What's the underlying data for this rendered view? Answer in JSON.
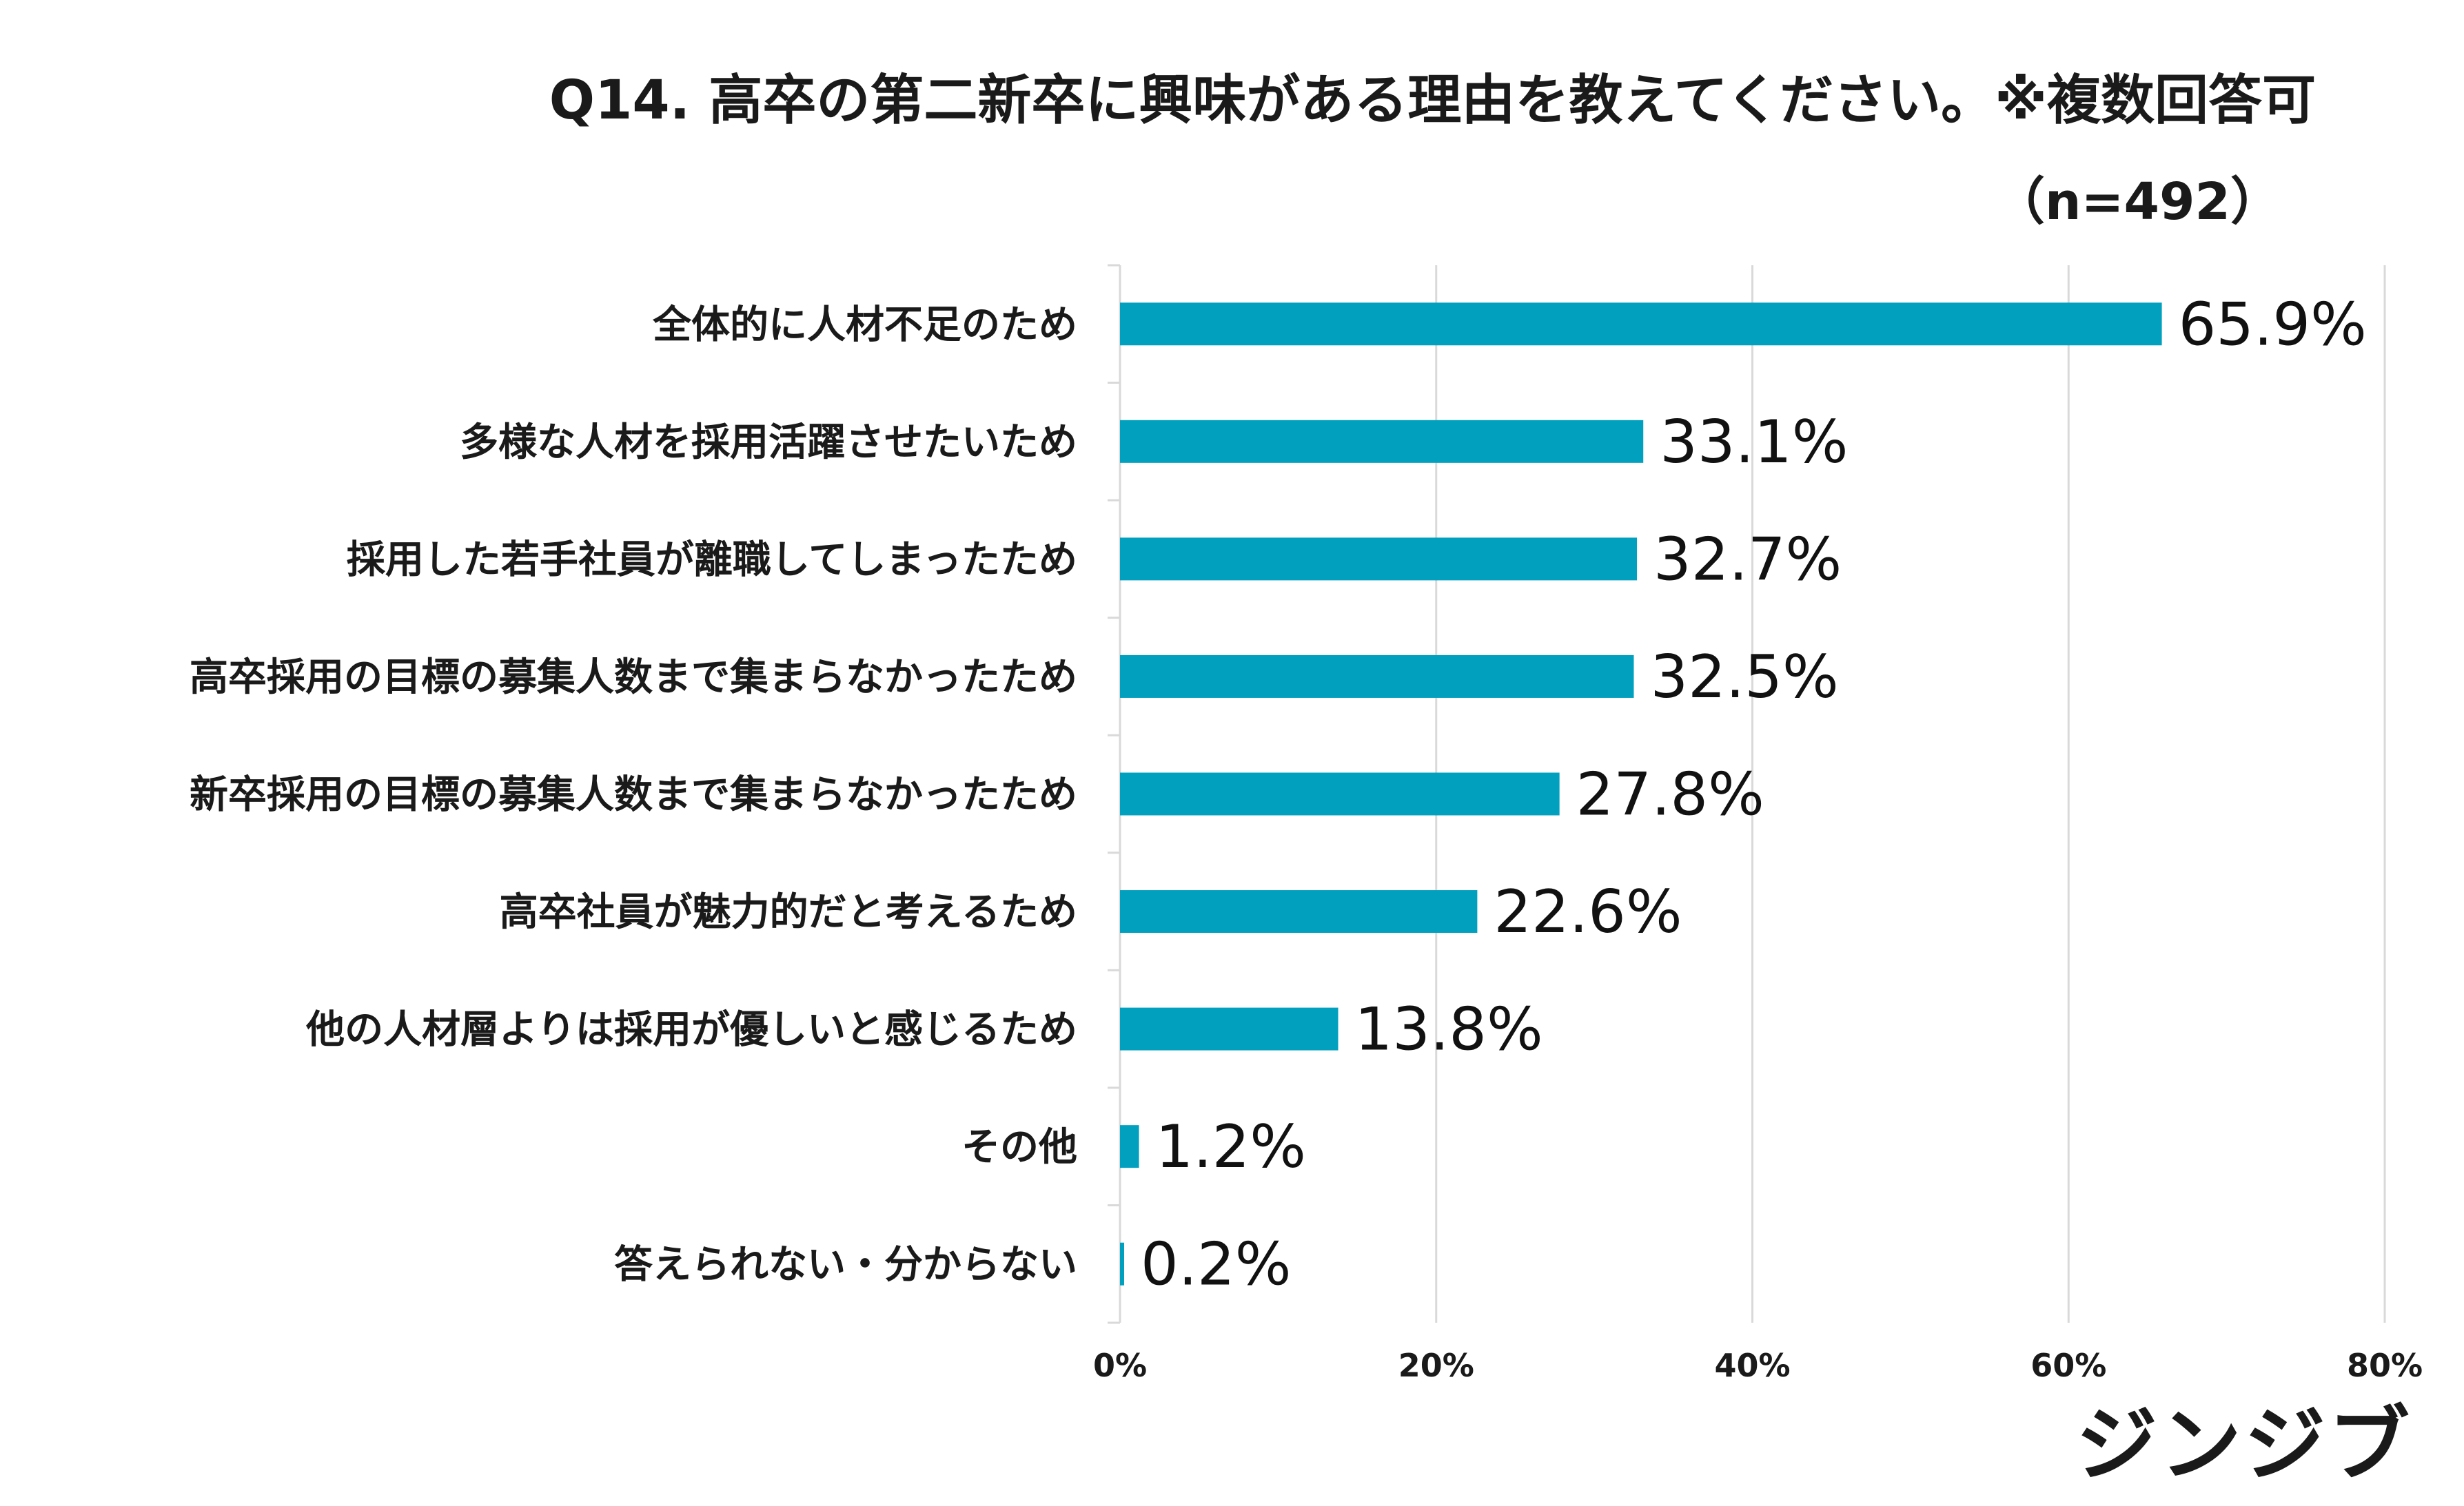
{
  "chart_data": {
    "type": "bar",
    "orientation": "horizontal",
    "title": "Q14. 高卒の第二新卒に興味がある理由を教えてください。※複数回答可",
    "subtitle": "（n=492）",
    "categories": [
      "全体的に人材不足のため",
      "多様な人材を採用活躍させたいため",
      "採用した若手社員が離職してしまったため",
      "高卒採用の目標の募集人数まで集まらなかったため",
      "新卒採用の目標の募集人数まで集まらなかったため",
      "高卒社員が魅力的だと考えるため",
      "他の人材層よりは採用が優しいと感じるため",
      "その他",
      "答えられない・分からない"
    ],
    "values": [
      65.9,
      33.1,
      32.7,
      32.5,
      27.8,
      22.6,
      13.8,
      1.2,
      0.2
    ],
    "value_labels": [
      "65.9%",
      "33.1%",
      "32.7%",
      "32.5%",
      "27.8%",
      "22.6%",
      "13.8%",
      "1.2%",
      "0.2%"
    ],
    "xlim": [
      0,
      80
    ],
    "xticks": [
      0,
      20,
      40,
      60,
      80
    ],
    "xtick_labels": [
      "0%",
      "20%",
      "40%",
      "60%",
      "80%"
    ],
    "xlabel": "",
    "ylabel": "",
    "grid": "vertical",
    "legend": "none",
    "bar_color": "#00a0be"
  },
  "branding": {
    "logo_text": "ジンジブ"
  }
}
